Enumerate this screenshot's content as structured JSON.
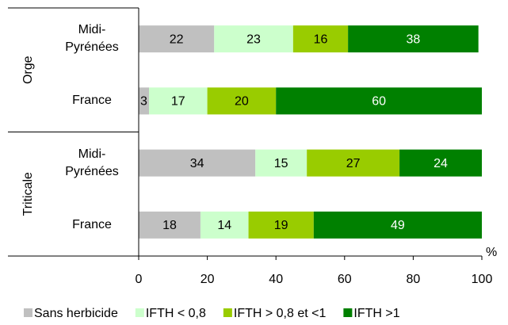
{
  "chart_data": {
    "type": "stacked-barh",
    "groups": [
      "Orge",
      "Triticale"
    ],
    "categories": [
      "Midi-Pyrénées",
      "France",
      "Midi-Pyrénées",
      "France"
    ],
    "series": [
      {
        "name": "Sans herbicide",
        "color": "#c0c0c0",
        "label_color": "#000000",
        "values": [
          22,
          3,
          34,
          18
        ]
      },
      {
        "name": "IFTH < 0,8",
        "color": "#ccffcc",
        "label_color": "#000000",
        "values": [
          23,
          17,
          15,
          14
        ]
      },
      {
        "name": "IFTH > 0,8 et <1",
        "color": "#99cc00",
        "label_color": "#000000",
        "values": [
          16,
          20,
          27,
          19
        ]
      },
      {
        "name": "IFTH >1",
        "color": "#008000",
        "label_color": "#ffffff",
        "values": [
          38,
          60,
          24,
          49
        ]
      }
    ],
    "xlabel": "%",
    "xlim": [
      0,
      100
    ],
    "xticks": [
      0,
      20,
      40,
      60,
      80,
      100
    ],
    "legend": "bottom"
  }
}
